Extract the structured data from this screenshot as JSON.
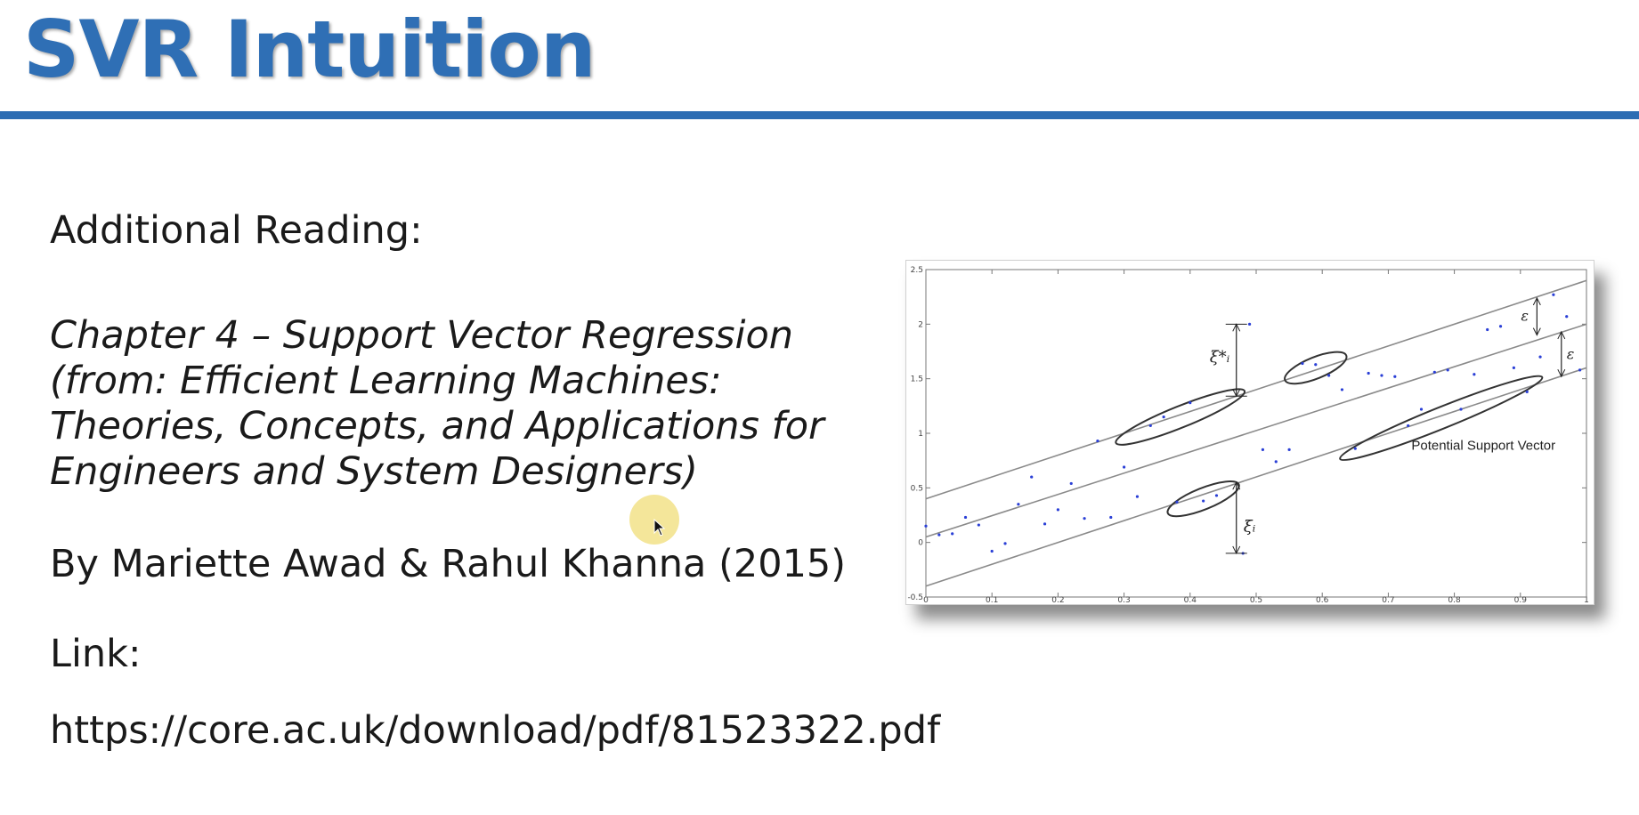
{
  "slide": {
    "title": "SVR Intuition",
    "reading_heading": "Additional Reading:",
    "book_title_lines": [
      "Chapter 4 – Support Vector Regression",
      "(from: Efficient Learning Machines:",
      "Theories, Concepts, and Applications for",
      "Engineers and System Designers)"
    ],
    "authors": "By Mariette Awad & Rahul Khanna (2015)",
    "link_label": "Link:",
    "link_url": "https://core.ac.uk/download/pdf/81523322.pdf"
  },
  "colors": {
    "title": "#2f6fb5",
    "rule": "#2d6db3",
    "points": "#2a3fd6",
    "highlight": "#f0de78"
  },
  "figure": {
    "annotation": "Potential Support Vector",
    "xi_star_label": "ξ*ᵢ",
    "xi_label": "ξᵢ",
    "epsilon_label": "ε"
  },
  "chart_data": {
    "type": "scatter",
    "title": "",
    "xlabel": "",
    "ylabel": "",
    "xlim": [
      0,
      1
    ],
    "ylim": [
      -0.5,
      2.5
    ],
    "x_ticks": [
      "0",
      "0.1",
      "0.2",
      "0.3",
      "0.4",
      "0.5",
      "0.6",
      "0.7",
      "0.8",
      "0.9",
      "1"
    ],
    "y_ticks": [
      "-0.5",
      "0",
      "0.5",
      "1",
      "1.5",
      "2",
      "2.5"
    ],
    "lines": [
      {
        "name": "upper",
        "x": [
          0,
          1
        ],
        "y": [
          0.4,
          2.4
        ]
      },
      {
        "name": "middle",
        "x": [
          0,
          1
        ],
        "y": [
          0.05,
          2.0
        ]
      },
      {
        "name": "lower",
        "x": [
          0,
          1
        ],
        "y": [
          -0.4,
          1.6
        ]
      }
    ],
    "points": [
      [
        0.0,
        0.15
      ],
      [
        0.02,
        0.07
      ],
      [
        0.04,
        0.08
      ],
      [
        0.06,
        0.23
      ],
      [
        0.08,
        0.16
      ],
      [
        0.1,
        -0.08
      ],
      [
        0.12,
        -0.01
      ],
      [
        0.14,
        0.35
      ],
      [
        0.16,
        0.6
      ],
      [
        0.18,
        0.17
      ],
      [
        0.2,
        0.3
      ],
      [
        0.22,
        0.54
      ],
      [
        0.24,
        0.22
      ],
      [
        0.26,
        0.93
      ],
      [
        0.28,
        0.23
      ],
      [
        0.3,
        0.69
      ],
      [
        0.32,
        0.42
      ],
      [
        0.34,
        1.07
      ],
      [
        0.36,
        1.15
      ],
      [
        0.38,
        0.37
      ],
      [
        0.4,
        1.28
      ],
      [
        0.42,
        0.38
      ],
      [
        0.44,
        0.43
      ],
      [
        0.48,
        -0.1
      ],
      [
        0.49,
        2.0
      ],
      [
        0.51,
        0.85
      ],
      [
        0.53,
        0.74
      ],
      [
        0.55,
        0.85
      ],
      [
        0.57,
        1.64
      ],
      [
        0.59,
        1.63
      ],
      [
        0.61,
        1.53
      ],
      [
        0.63,
        1.4
      ],
      [
        0.65,
        0.86
      ],
      [
        0.67,
        1.55
      ],
      [
        0.69,
        1.53
      ],
      [
        0.71,
        1.52
      ],
      [
        0.73,
        1.07
      ],
      [
        0.75,
        1.22
      ],
      [
        0.77,
        1.56
      ],
      [
        0.79,
        1.58
      ],
      [
        0.81,
        1.22
      ],
      [
        0.83,
        1.54
      ],
      [
        0.85,
        1.95
      ],
      [
        0.87,
        1.98
      ],
      [
        0.89,
        1.6
      ],
      [
        0.91,
        1.38
      ],
      [
        0.93,
        1.7
      ],
      [
        0.95,
        2.27
      ],
      [
        0.97,
        2.07
      ],
      [
        0.99,
        1.58
      ]
    ],
    "ellipses": [
      {
        "cx": 0.385,
        "cy": 1.15,
        "rx": 0.105,
        "ry": 0.14,
        "angle": -22
      },
      {
        "cx": 0.59,
        "cy": 1.6,
        "rx": 0.05,
        "ry": 0.1,
        "angle": -22
      },
      {
        "cx": 0.42,
        "cy": 0.4,
        "rx": 0.058,
        "ry": 0.12,
        "angle": -22
      },
      {
        "cx": 0.78,
        "cy": 1.14,
        "rx": 0.165,
        "ry": 0.18,
        "angle": -22
      }
    ]
  }
}
